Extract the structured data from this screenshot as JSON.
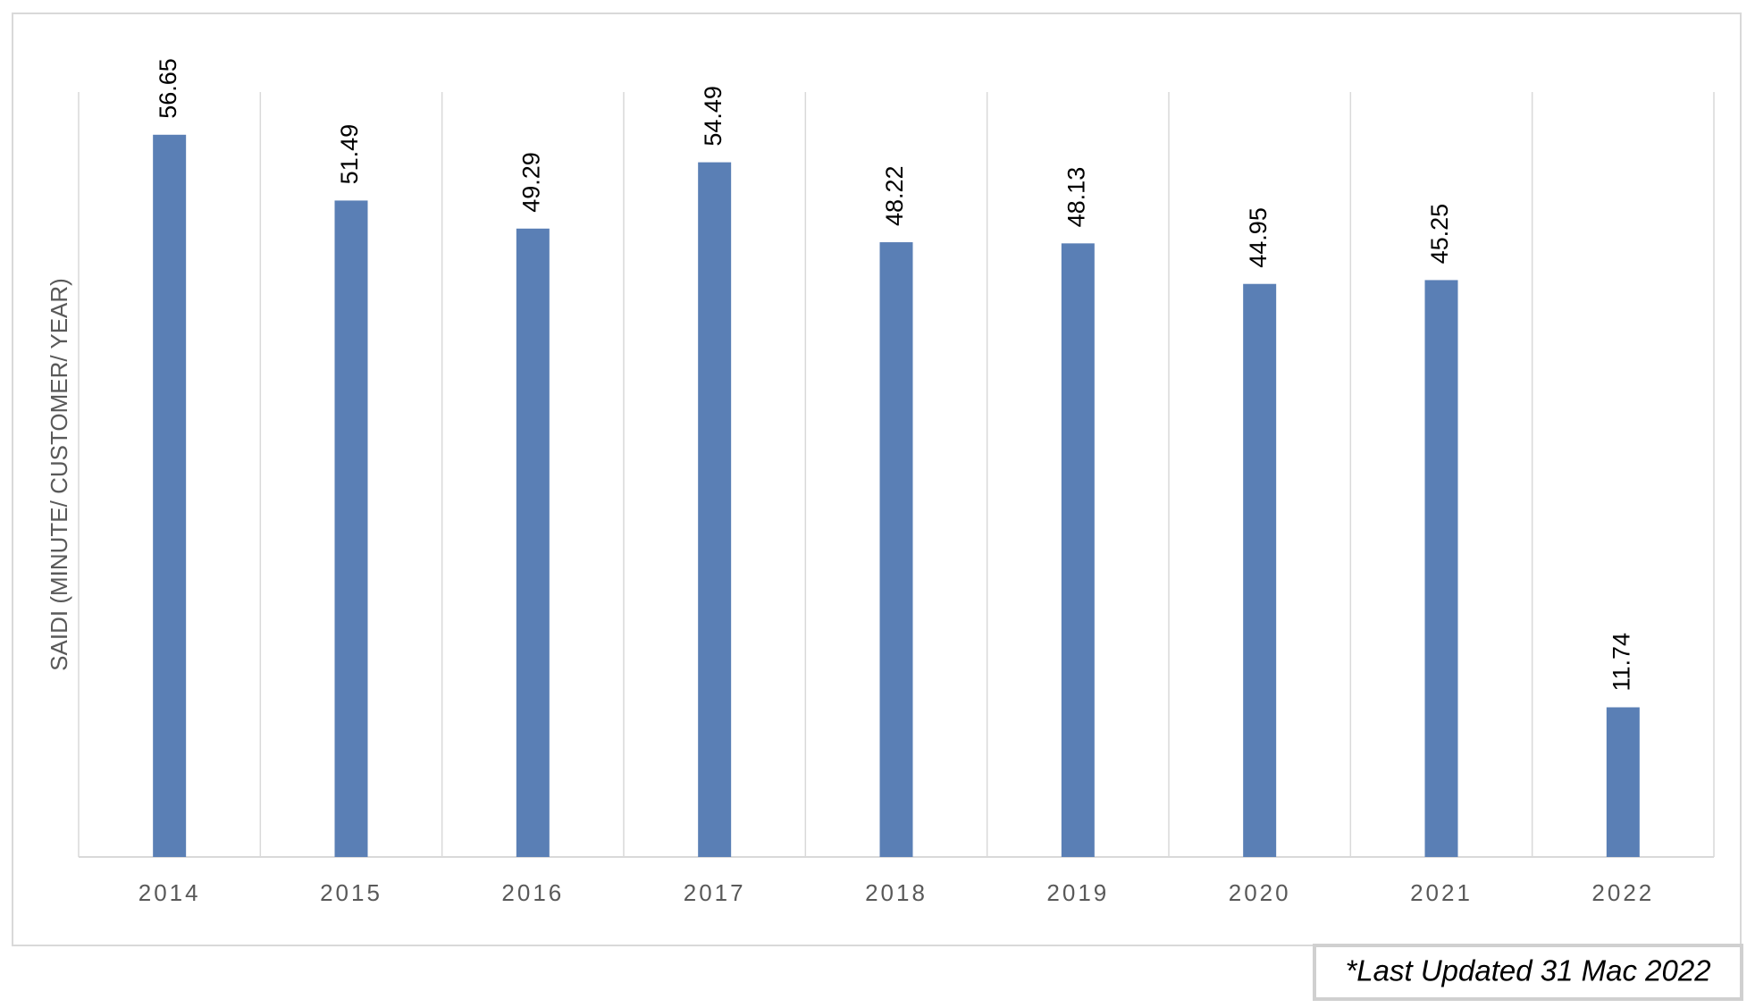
{
  "chart_data": {
    "type": "bar",
    "y_axis_label": "SAIDI (MINUTE/ CUSTOMER/ YEAR)",
    "categories": [
      "2014",
      "2015",
      "2016",
      "2017",
      "2018",
      "2019",
      "2020",
      "2021",
      "2022"
    ],
    "values": [
      56.65,
      51.49,
      49.29,
      54.49,
      48.22,
      48.13,
      44.95,
      45.25,
      11.74
    ],
    "color": "#5a7fb5",
    "ylim": [
      0,
      60
    ],
    "footnote": "*Last Updated 31 Mac 2022"
  }
}
